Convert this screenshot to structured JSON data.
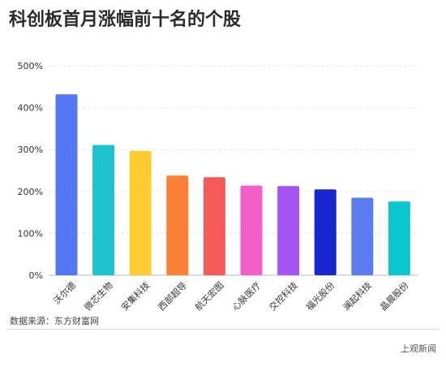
{
  "title": "科创板首月涨幅前十名的个股",
  "source": "数据来源：东方财富网",
  "brand": "上观新闻",
  "chart_data": {
    "type": "bar",
    "title": "科创板首月涨幅前十名的个股",
    "xlabel": "",
    "ylabel": "",
    "categories": [
      "沃尔德",
      "微芯生物",
      "安集科技",
      "西部超导",
      "航天宏图",
      "心脉医疗",
      "交控科技",
      "福光股份",
      "澜起科技",
      "晶晨股份"
    ],
    "values": [
      432,
      311,
      297,
      238,
      234,
      214,
      213,
      205,
      185,
      176
    ],
    "ylim": [
      0,
      500
    ],
    "yticks": [
      "0%",
      "100%",
      "200%",
      "300%",
      "400%",
      "500%"
    ],
    "grid": true,
    "legend": "none",
    "colors": [
      "#5377f5",
      "#1cc3cc",
      "#ffcc33",
      "#fc7f36",
      "#f65a5a",
      "#f45fc7",
      "#a555f2",
      "#1626d0",
      "#5a7ef2",
      "#0bc5cf"
    ]
  }
}
